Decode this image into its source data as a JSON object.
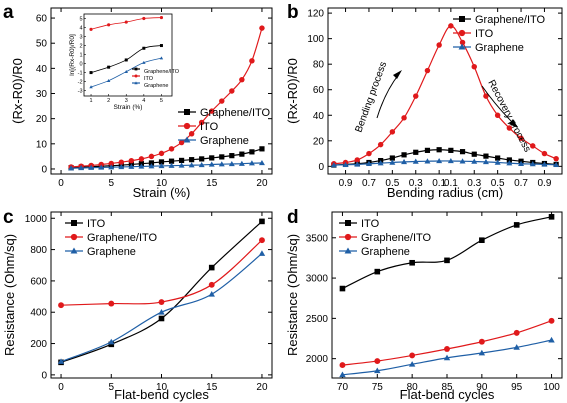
{
  "colors": {
    "black": "#000000",
    "red": "#e0191b",
    "blue": "#1f5fa6"
  },
  "panels": [
    {
      "letter": "a",
      "xlabel": "Strain (%)",
      "ylabel": "(Rx-R0)/R0",
      "xticks": [
        0,
        5,
        10,
        15,
        20
      ],
      "yticks": [
        0,
        10,
        20,
        30,
        40,
        50,
        60
      ],
      "xlim": [
        -1,
        21
      ],
      "ylim": [
        -2,
        64
      ],
      "legend": [
        "Graphene/ITO",
        "ITO",
        "Graphene"
      ]
    },
    {
      "letter": "b",
      "xlabel": "Bending radius (cm)",
      "ylabel": "(Rx-R0)/R0",
      "xticklabels": [
        "0.9",
        "0.7",
        "0.5",
        "0.3",
        "0.1",
        "0.1",
        "0.3",
        "0.5",
        "0.7",
        "0.9"
      ],
      "yticks": [
        0,
        20,
        40,
        60,
        80,
        100,
        120
      ],
      "xlim": [
        -0.5,
        19.5
      ],
      "ylim": [
        -6,
        124
      ],
      "legend": [
        "Graphene/ITO",
        "ITO",
        "Graphene"
      ],
      "annotations": [
        "Bending process",
        "Recovery process"
      ]
    },
    {
      "letter": "c",
      "xlabel": "Flat-bend cycles",
      "ylabel": "Resistance (Ohm/sq)",
      "xticks": [
        0,
        5,
        10,
        15,
        20
      ],
      "yticks": [
        0,
        200,
        400,
        600,
        800,
        1000
      ],
      "xlim": [
        -1,
        21
      ],
      "ylim": [
        -20,
        1040
      ],
      "legend": [
        "ITO",
        "Graphene/ITO",
        "Graphene"
      ]
    },
    {
      "letter": "d",
      "xlabel": "Flat-bend cycles",
      "ylabel": "Resistance (Ohm/sq)",
      "xticks": [
        70,
        75,
        80,
        85,
        90,
        95,
        100
      ],
      "yticks": [
        2000,
        2500,
        3000,
        3500
      ],
      "xlim": [
        68.5,
        101.5
      ],
      "ylim": [
        1760,
        3820
      ],
      "legend": [
        "ITO",
        "Graphene/ITO",
        "Graphene"
      ]
    }
  ],
  "inset": {
    "xlabel": "Strain (%)",
    "ylabel": "ln[(Rx-R0)/R0]",
    "xticks": [
      1,
      2,
      3,
      4,
      5
    ],
    "yticks": [
      -3,
      -2,
      -1,
      0,
      1,
      2,
      3,
      4,
      5
    ],
    "xlim": [
      0.6,
      5.6
    ],
    "ylim": [
      -3.6,
      5.5
    ],
    "legend": [
      "Graphene/ITO",
      "ITO",
      "Graphene"
    ]
  },
  "chart_data": [
    {
      "type": "line",
      "panel": "a",
      "x": [
        1,
        2,
        3,
        4,
        5,
        6,
        7,
        8,
        9,
        10,
        11,
        12,
        13,
        14,
        15,
        16,
        17,
        18,
        19,
        20
      ],
      "series": [
        {
          "name": "Graphene/ITO",
          "marker": "square",
          "color": "#000000",
          "values": [
            0.5,
            0.7,
            0.9,
            1.1,
            1.3,
            1.5,
            1.8,
            2.1,
            2.4,
            2.8,
            3.1,
            3.4,
            3.7,
            4.0,
            4.4,
            4.8,
            5.3,
            5.9,
            6.8,
            8.0
          ]
        },
        {
          "name": "ITO",
          "marker": "circle",
          "color": "#e0191b",
          "values": [
            0.8,
            1.1,
            1.4,
            1.8,
            2.2,
            2.7,
            3.3,
            4.0,
            5.0,
            6.2,
            8.0,
            10.5,
            14.0,
            18.5,
            23.0,
            27.0,
            31.0,
            35.5,
            43.0,
            56.0
          ]
        },
        {
          "name": "Graphene",
          "marker": "triangle",
          "color": "#1f5fa6",
          "values": [
            0.3,
            0.4,
            0.5,
            0.6,
            0.7,
            0.8,
            0.9,
            1.0,
            1.1,
            1.2,
            1.3,
            1.4,
            1.5,
            1.6,
            1.8,
            1.9,
            2.0,
            2.1,
            2.3,
            2.4
          ]
        }
      ]
    },
    {
      "type": "line",
      "panel": "a-inset",
      "x": [
        1,
        2,
        3,
        4,
        5
      ],
      "series": [
        {
          "name": "Graphene/ITO",
          "marker": "square",
          "color": "#000000",
          "values": [
            -1.0,
            -0.4,
            0.4,
            1.7,
            2.0
          ]
        },
        {
          "name": "ITO",
          "marker": "circle",
          "color": "#e0191b",
          "values": [
            3.8,
            4.3,
            4.6,
            5.0,
            5.1
          ]
        },
        {
          "name": "Graphene",
          "marker": "triangle",
          "color": "#1f5fa6",
          "values": [
            -2.6,
            -1.9,
            -0.9,
            0.1,
            0.6
          ]
        }
      ]
    },
    {
      "type": "line",
      "panel": "b",
      "x": [
        0,
        1,
        2,
        3,
        4,
        5,
        6,
        7,
        8,
        9,
        10,
        11,
        12,
        13,
        14,
        15,
        16,
        17,
        18,
        19
      ],
      "series": [
        {
          "name": "Graphene/ITO",
          "marker": "square",
          "color": "#000000",
          "values": [
            1.0,
            1.5,
            2.0,
            3.0,
            4.5,
            6.5,
            9.0,
            11.0,
            12.5,
            13.0,
            12.5,
            11.5,
            9.5,
            8.0,
            6.5,
            5.0,
            4.0,
            3.0,
            2.2,
            1.5
          ]
        },
        {
          "name": "ITO",
          "marker": "circle",
          "color": "#e0191b",
          "values": [
            2.0,
            3.0,
            5.0,
            10.0,
            17.0,
            27.0,
            38.0,
            55.0,
            75.0,
            95.0,
            110.0,
            97.0,
            78.0,
            55.0,
            40.0,
            30.0,
            22.0,
            16.0,
            10.0,
            6.0
          ]
        },
        {
          "name": "Graphene",
          "marker": "triangle",
          "color": "#1f5fa6",
          "values": [
            1.0,
            1.2,
            1.5,
            2.0,
            2.5,
            3.0,
            3.5,
            3.8,
            4.0,
            4.2,
            4.2,
            4.0,
            3.8,
            3.5,
            3.0,
            2.5,
            2.0,
            1.8,
            1.5,
            1.2
          ]
        }
      ]
    },
    {
      "type": "line",
      "panel": "c",
      "x": [
        0,
        5,
        10,
        15,
        20
      ],
      "series": [
        {
          "name": "ITO",
          "marker": "square",
          "color": "#000000",
          "values": [
            80,
            195,
            360,
            685,
            980
          ]
        },
        {
          "name": "Graphene/ITO",
          "marker": "circle",
          "color": "#e0191b",
          "values": [
            445,
            455,
            465,
            575,
            860
          ]
        },
        {
          "name": "Graphene",
          "marker": "triangle",
          "color": "#1f5fa6",
          "values": [
            85,
            210,
            400,
            515,
            775
          ]
        }
      ]
    },
    {
      "type": "line",
      "panel": "d",
      "x": [
        70,
        75,
        80,
        85,
        90,
        95,
        100
      ],
      "series": [
        {
          "name": "ITO",
          "marker": "square",
          "color": "#000000",
          "values": [
            2870,
            3080,
            3190,
            3220,
            3470,
            3660,
            3760
          ]
        },
        {
          "name": "Graphene/ITO",
          "marker": "circle",
          "color": "#e0191b",
          "values": [
            1920,
            1970,
            2040,
            2120,
            2210,
            2320,
            2470
          ]
        },
        {
          "name": "Graphene",
          "marker": "triangle",
          "color": "#1f5fa6",
          "values": [
            1800,
            1850,
            1930,
            2010,
            2070,
            2140,
            2230
          ]
        }
      ]
    }
  ]
}
